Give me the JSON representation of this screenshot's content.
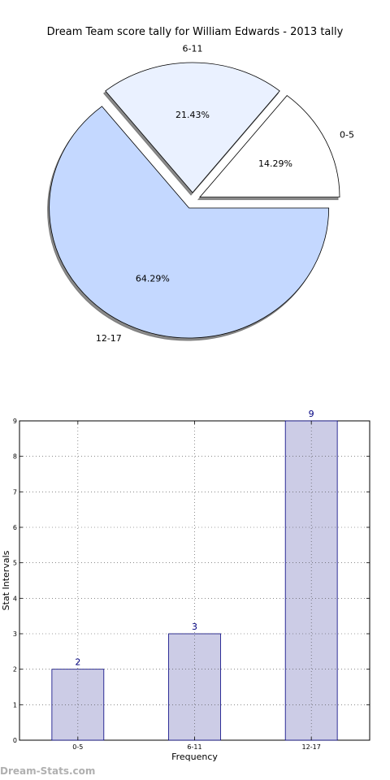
{
  "watermark": "Dream-Stats.com",
  "chart_data": [
    {
      "type": "pie",
      "title": "Dream Team score tally for William Edwards - 2013 tally",
      "categories": [
        "0-5",
        "6-11",
        "12-17"
      ],
      "values": [
        2,
        3,
        9
      ],
      "percent_labels": [
        "14.29%",
        "21.43%",
        "64.29%"
      ],
      "colors": [
        "#ffffff",
        "#eaf1ff",
        "#c4d8ff"
      ],
      "exploded": true,
      "shadow": true
    },
    {
      "type": "bar",
      "categories": [
        "0-5",
        "6-11",
        "12-17"
      ],
      "values": [
        2,
        3,
        9
      ],
      "xlabel": "Frequency",
      "ylabel": "Stat Intervals",
      "ylim": [
        0,
        9
      ],
      "yticks": [
        "0",
        "1",
        "2",
        "3",
        "4",
        "5",
        "6",
        "7",
        "8",
        "9"
      ],
      "grid": true,
      "bar_color": "#cccce6",
      "edge_color": "#000080",
      "label_color": "#000080"
    }
  ]
}
